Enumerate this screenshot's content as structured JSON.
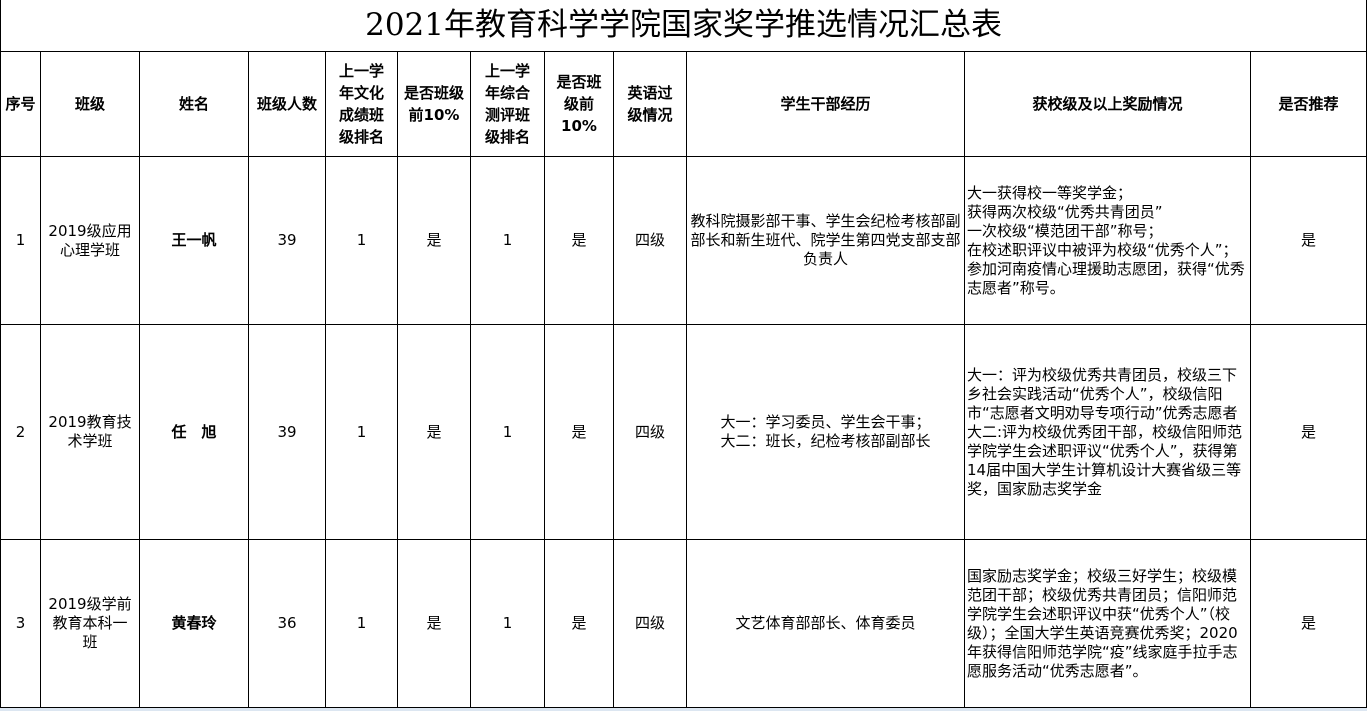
{
  "title": "2021年教育科学学院国家奖学推选情况汇总表",
  "headers": [
    "序号",
    "班级",
    "姓名",
    "班级人数",
    "上一学年文化成绩班级排名",
    "是否班级前10%",
    "上一学年综合测评班级排名",
    "是否班级前10%",
    "英语过级情况",
    "学生干部经历",
    "获校级及以上奖励情况",
    "是否推荐"
  ],
  "rows": [
    {
      "no": "1",
      "class": "2019级应用心理学班",
      "name": "王一帆",
      "size": "39",
      "culture_rank": "1",
      "culture_top10": "是",
      "overall_rank": "1",
      "overall_top10": "是",
      "english": "四级",
      "cadre": "教科院摄影部干事、学生会纪检考核部副部长和新生班代、院学生第四党支部支部负责人",
      "awards": "大一获得校一等奖学金；\n获得两次校级“优秀共青团员”\n一次校级“模范团干部”称号；\n在校述职评议中被评为校级“优秀个人”；\n参加河南疫情心理援助志愿团，获得“优秀志愿者”称号。",
      "recommend": "是"
    },
    {
      "no": "2",
      "class": "2019教育技术学班",
      "name": "任　旭",
      "size": "39",
      "culture_rank": "1",
      "culture_top10": "是",
      "overall_rank": "1",
      "overall_top10": "是",
      "english": "四级",
      "cadre": "大一：学习委员、学生会干事；\n大二：班长，纪检考核部副部长",
      "awards": "大一：评为校级优秀共青团员，校级三下乡社会实践活动“优秀个人”，校级信阳市“志愿者文明劝导专项行动”优秀志愿者\n大二:评为校级优秀团干部，校级信阳师范学院学生会述职评议“优秀个人”，获得第14届中国大学生计算机设计大赛省级三等奖，国家励志奖学金",
      "recommend": "是"
    },
    {
      "no": "3",
      "class": "2019级学前教育本科一班",
      "name": "黄春玲",
      "size": "36",
      "culture_rank": "1",
      "culture_top10": "是",
      "overall_rank": "1",
      "overall_top10": "是",
      "english": "四级",
      "cadre": "文艺体育部部长、体育委员",
      "awards": "国家励志奖学金；校级三好学生；校级模范团干部；校级优秀共青团员；信阳师范学院学生会述职评议中获“优秀个人”（校级）；全国大学生英语竞赛优秀奖；2020年获得信阳师范学院“疫”线家庭手拉手志愿服务活动“优秀志愿者”。",
      "recommend": "是"
    }
  ]
}
